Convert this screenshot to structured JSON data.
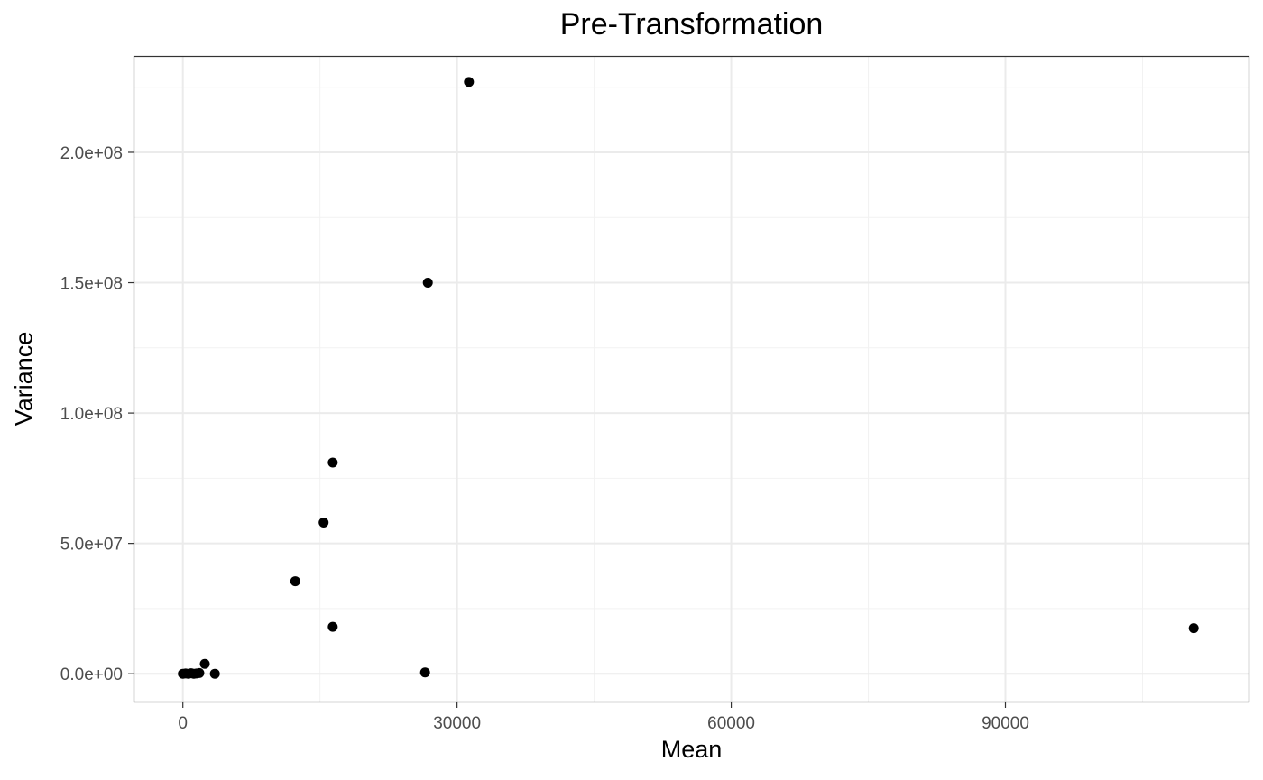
{
  "chart_data": {
    "type": "scatter",
    "title": "Pre-Transformation",
    "xlabel": "Mean",
    "ylabel": "Variance",
    "xlim": [
      -5400,
      116700
    ],
    "ylim": [
      -11000000,
      237000000
    ],
    "x_ticks": [
      0,
      30000,
      60000,
      90000
    ],
    "x_tick_labels": [
      "0",
      "30000",
      "60000",
      "90000"
    ],
    "y_ticks": [
      0,
      50000000,
      100000000,
      150000000,
      200000000
    ],
    "y_tick_labels": [
      "0.0e+00",
      "5.0e+07",
      "1.0e+08",
      "1.5e+08",
      "2.0e+08"
    ],
    "grid": true,
    "point_color": "#000000",
    "points": [
      {
        "x": 31300,
        "y": 227000000
      },
      {
        "x": 26800,
        "y": 150000000
      },
      {
        "x": 16400,
        "y": 81000000
      },
      {
        "x": 15400,
        "y": 58000000
      },
      {
        "x": 12300,
        "y": 35500000
      },
      {
        "x": 16400,
        "y": 18000000
      },
      {
        "x": 110600,
        "y": 17500000
      },
      {
        "x": 26500,
        "y": 500000
      },
      {
        "x": 2400,
        "y": 3800000
      },
      {
        "x": 3500,
        "y": 0
      },
      {
        "x": 0,
        "y": 0
      },
      {
        "x": 300,
        "y": 100000
      },
      {
        "x": 600,
        "y": 0
      },
      {
        "x": 900,
        "y": 200000
      },
      {
        "x": 1200,
        "y": 0
      },
      {
        "x": 1500,
        "y": 100000
      },
      {
        "x": 1800,
        "y": 300000
      }
    ]
  }
}
